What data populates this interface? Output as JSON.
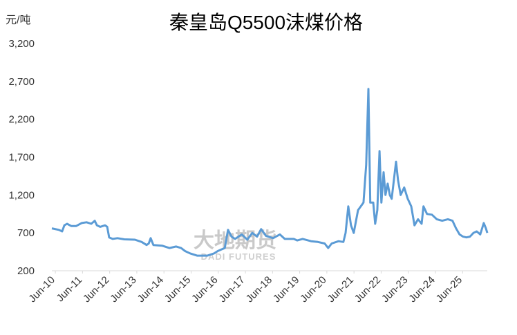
{
  "chart_data": {
    "type": "line",
    "title": "秦皇岛Q5500沫煤价格",
    "y_axis_label": "元/吨",
    "watermark": {
      "brand": "大地期货",
      "subtitle": "DADI FUTURES"
    },
    "x": [
      2010.29,
      2010.55,
      2010.67,
      2010.75,
      2010.85,
      2011.01,
      2011.18,
      2011.39,
      2011.57,
      2011.74,
      2011.87,
      2011.95,
      2012.07,
      2012.25,
      2012.33,
      2012.4,
      2012.53,
      2012.71,
      2012.96,
      2013.35,
      2013.6,
      2013.78,
      2013.86,
      2013.93,
      2014.03,
      2014.36,
      2014.62,
      2014.87,
      2015.05,
      2015.2,
      2015.38,
      2015.64,
      2016.02,
      2016.27,
      2016.4,
      2016.53,
      2016.66,
      2016.78,
      2016.91,
      2017.04,
      2017.29,
      2017.49,
      2017.67,
      2017.85,
      2018.0,
      2018.18,
      2018.44,
      2018.69,
      2018.87,
      2019.2,
      2019.33,
      2019.53,
      2019.84,
      2020.09,
      2020.34,
      2020.47,
      2020.6,
      2020.85,
      2021.03,
      2021.11,
      2021.21,
      2021.31,
      2021.41,
      2021.49,
      2021.57,
      2021.67,
      2021.77,
      2021.87,
      2021.95,
      2022.02,
      2022.13,
      2022.2,
      2022.28,
      2022.36,
      2022.43,
      2022.51,
      2022.58,
      2022.66,
      2022.74,
      2022.81,
      2022.89,
      2022.97,
      2023.04,
      2023.14,
      2023.27,
      2023.4,
      2023.53,
      2023.65,
      2023.78,
      2023.91,
      2023.98,
      2024.11,
      2024.29,
      2024.47,
      2024.67,
      2024.88,
      2025.05,
      2025.18,
      2025.31,
      2025.44,
      2025.56,
      2025.69,
      2025.82,
      2025.94,
      2026.07,
      2026.2,
      2026.28,
      2026.33
    ],
    "series": [
      {
        "color": "#5b9bd5",
        "values": [
          760,
          740,
          720,
          800,
          820,
          790,
          790,
          830,
          840,
          820,
          860,
          800,
          780,
          800,
          780,
          640,
          620,
          630,
          615,
          610,
          580,
          540,
          560,
          630,
          540,
          530,
          500,
          520,
          500,
          460,
          430,
          400,
          400,
          430,
          460,
          480,
          500,
          740,
          650,
          620,
          680,
          610,
          700,
          650,
          750,
          660,
          630,
          680,
          620,
          620,
          600,
          620,
          590,
          580,
          560,
          500,
          560,
          590,
          580,
          700,
          1050,
          800,
          700,
          850,
          1000,
          1050,
          1100,
          1600,
          2600,
          1100,
          1100,
          820,
          1000,
          1780,
          1100,
          1500,
          1200,
          1350,
          1200,
          1150,
          1400,
          1640,
          1400,
          1200,
          1300,
          1150,
          1050,
          800,
          880,
          820,
          1050,
          950,
          940,
          880,
          860,
          880,
          860,
          760,
          680,
          650,
          640,
          650,
          700,
          720,
          680,
          830,
          760,
          700
        ]
      }
    ],
    "xlim": [
      2010.29,
      2026.33
    ],
    "xticks": [
      {
        "value": 2010.42,
        "label": "Jun-10"
      },
      {
        "value": 2011.42,
        "label": "Jun-11"
      },
      {
        "value": 2012.42,
        "label": "Jun-12"
      },
      {
        "value": 2013.42,
        "label": "Jun-13"
      },
      {
        "value": 2014.42,
        "label": "Jun-14"
      },
      {
        "value": 2015.42,
        "label": "Jun-15"
      },
      {
        "value": 2016.42,
        "label": "Jun-16"
      },
      {
        "value": 2017.42,
        "label": "Jun-17"
      },
      {
        "value": 2018.42,
        "label": "Jun-18"
      },
      {
        "value": 2019.42,
        "label": "Jun-19"
      },
      {
        "value": 2020.42,
        "label": "Jun-20"
      },
      {
        "value": 2021.42,
        "label": "Jun-21"
      },
      {
        "value": 2022.42,
        "label": "Jun-22"
      },
      {
        "value": 2023.42,
        "label": "Jun-23"
      },
      {
        "value": 2024.42,
        "label": "Jun-24"
      },
      {
        "value": 2025.42,
        "label": "Jun-25"
      }
    ],
    "ylim": [
      200,
      3200
    ],
    "yticks": [
      200,
      700,
      {
        "value": 1200,
        "label": "1,200"
      },
      {
        "value": 1700,
        "label": "1,700"
      },
      {
        "value": 2200,
        "label": "2,200"
      },
      {
        "value": 2700,
        "label": "2,700"
      },
      {
        "value": 3200,
        "label": "3,200"
      }
    ],
    "grid": false
  }
}
